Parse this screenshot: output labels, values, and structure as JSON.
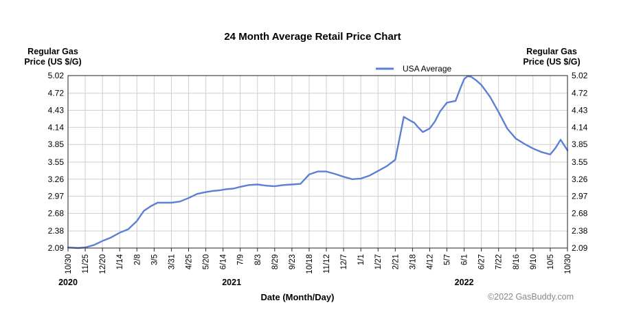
{
  "chart_data": {
    "type": "line",
    "title": "24 Month Average Retail Price Chart",
    "ylabel_left": [
      "Regular Gas",
      "Price (US $/G)"
    ],
    "ylabel_right": [
      "Regular Gas",
      "Price (US $/G)"
    ],
    "xlabel": "Date (Month/Day)",
    "credit": "©2022 GasBuddy.com",
    "legend": "USA Average",
    "legend_position": "top-center",
    "ylim": [
      2.09,
      5.02
    ],
    "yticks": [
      "5.02",
      "4.72",
      "4.43",
      "4.14",
      "3.85",
      "3.55",
      "3.26",
      "2.97",
      "2.68",
      "2.38",
      "2.09"
    ],
    "xticks": [
      "10/30",
      "11/25",
      "12/20",
      "1/14",
      "2/8",
      "3/5",
      "3/31",
      "4/25",
      "5/20",
      "6/14",
      "7/9",
      "8/3",
      "8/29",
      "9/23",
      "10/18",
      "11/12",
      "12/7",
      "1/1",
      "1/27",
      "2/21",
      "3/18",
      "4/12",
      "5/7",
      "6/1",
      "6/27",
      "7/22",
      "8/16",
      "9/10",
      "10/5",
      "10/30"
    ],
    "years": [
      {
        "label": "2020",
        "tick_index": 0
      },
      {
        "label": "2021",
        "tick_index": 9.5
      },
      {
        "label": "2022",
        "tick_index": 23
      }
    ],
    "grid": true,
    "series": [
      {
        "name": "USA Average",
        "color": "#5b7fd4",
        "x": [
          0,
          0.6,
          1.0,
          1.5,
          2.0,
          2.5,
          3.0,
          3.5,
          4.0,
          4.4,
          4.8,
          5.2,
          5.6,
          6.0,
          6.5,
          7.0,
          7.5,
          8.0,
          8.4,
          8.8,
          9.2,
          9.6,
          10.0,
          10.5,
          11.0,
          11.5,
          12.0,
          12.5,
          13.0,
          13.5,
          14.0,
          14.5,
          15.0,
          15.5,
          16.0,
          16.5,
          17.0,
          17.5,
          18.0,
          18.5,
          19.0,
          19.5,
          19.9,
          20.1,
          20.3,
          20.6,
          21.0,
          21.3,
          21.6,
          22.0,
          22.5,
          22.8,
          23.0,
          23.2,
          23.4,
          23.7,
          24.0,
          24.5,
          25.0,
          25.5,
          26.0,
          26.5,
          27.0,
          27.5,
          28.0,
          28.3,
          28.6,
          29.0
        ],
        "values": [
          2.1,
          2.09,
          2.1,
          2.14,
          2.21,
          2.27,
          2.35,
          2.41,
          2.55,
          2.72,
          2.8,
          2.86,
          2.86,
          2.86,
          2.88,
          2.94,
          3.01,
          3.04,
          3.06,
          3.07,
          3.09,
          3.1,
          3.13,
          3.16,
          3.17,
          3.15,
          3.14,
          3.16,
          3.17,
          3.18,
          3.34,
          3.39,
          3.39,
          3.35,
          3.3,
          3.26,
          3.27,
          3.32,
          3.4,
          3.48,
          3.59,
          4.32,
          4.25,
          4.22,
          4.15,
          4.06,
          4.12,
          4.24,
          4.41,
          4.56,
          4.59,
          4.82,
          4.96,
          5.01,
          5.0,
          4.94,
          4.86,
          4.66,
          4.4,
          4.12,
          3.95,
          3.86,
          3.78,
          3.72,
          3.68,
          3.79,
          3.93,
          3.75
        ]
      }
    ]
  }
}
